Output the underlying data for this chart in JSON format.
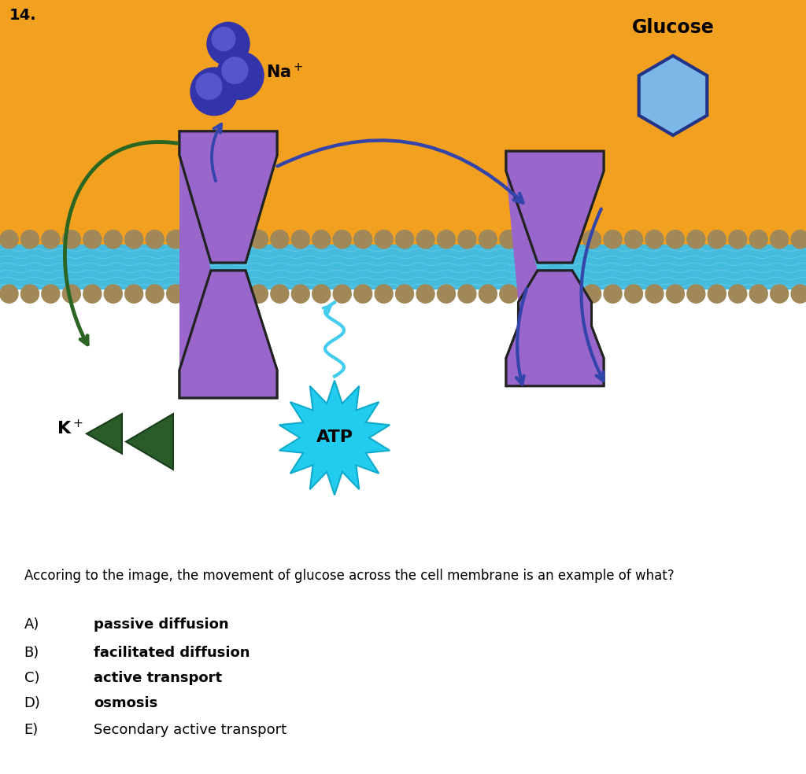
{
  "title_number": "14.",
  "bg_orange": "#F2A020",
  "bg_white": "#FFFFFF",
  "membrane_bead_color": "#A08858",
  "membrane_blue_color": "#45BBDD",
  "membrane_wavy_color": "#6ED0EE",
  "protein_purple": "#9966CC",
  "protein_edge": "#222222",
  "na_dark": "#3333AA",
  "na_mid": "#5555CC",
  "na_light": "#7777EE",
  "glucose_fill": "#7BB8E8",
  "glucose_edge": "#223388",
  "k_green": "#2A5C2A",
  "k_green_edge": "#1A3C1A",
  "atp_fill": "#22CCEE",
  "atp_edge": "#10AACC",
  "arrow_blue": "#3344AA",
  "arrow_green": "#2A6622",
  "wavy_cyan": "#44CCEE",
  "question_text": "Accoring to the image, the movement of glucose across the cell membrane is an example of what?",
  "options": [
    {
      "letter": "A)",
      "text": "passive diffusion",
      "bold": true
    },
    {
      "letter": "B)",
      "text": "facilitated diffusion",
      "bold": true
    },
    {
      "letter": "C)",
      "text": "active transport",
      "bold": true
    },
    {
      "letter": "D)",
      "text": "osmosis",
      "bold": true
    },
    {
      "letter": "E)",
      "text": "Secondary active transport",
      "bold": false
    }
  ],
  "fig_width": 10.24,
  "fig_height": 9.84
}
